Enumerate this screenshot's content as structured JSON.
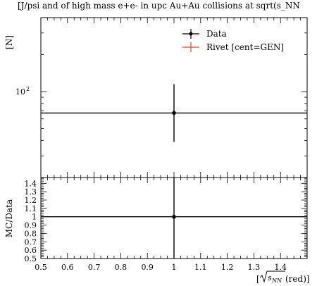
{
  "chart_data": [
    {
      "type": "scatter",
      "title": "[J/psi and of high mass e+e- in upc Au+Au collisions at sqrt(s_NN",
      "ylabel": "[N]",
      "xlabel": "",
      "log_y": true,
      "xlim": [
        0.5,
        1.5
      ],
      "ylim": [
        20,
        400
      ],
      "y_ticks": [
        {
          "value": 100,
          "label": "10",
          "exp": "2"
        }
      ],
      "legend": {
        "placement": "top-right",
        "entries": [
          {
            "label": "Data",
            "color": "#000000"
          },
          {
            "label": "Rivet [cent=GEN]",
            "color": "#e8472b"
          }
        ]
      },
      "series": [
        {
          "name": "Data",
          "x": [
            1.0
          ],
          "y": [
            67
          ],
          "x_range": [
            0.5,
            1.5
          ],
          "y_err": [
            [
              39,
              115
            ]
          ]
        }
      ]
    },
    {
      "type": "scatter",
      "title": "",
      "ylabel": "MC/Data",
      "xlabel": "[√s_NN(red)]",
      "xlim": [
        0.5,
        1.5
      ],
      "ylim": [
        0.5,
        1.47
      ],
      "x_ticks": [
        "0.5",
        "0.6",
        "0.7",
        "0.8",
        "0.9",
        "1",
        "1.1",
        "1.2",
        "1.3",
        "1.4"
      ],
      "x_tick_values": [
        0.5,
        0.6,
        0.7,
        0.8,
        0.9,
        1.0,
        1.1,
        1.2,
        1.3,
        1.4
      ],
      "y_ticks": [
        "0.5",
        "0.6",
        "0.7",
        "0.8",
        "0.9",
        "1",
        "1.1",
        "1.2",
        "1.3",
        "1.4"
      ],
      "y_tick_values": [
        0.5,
        0.6,
        0.7,
        0.8,
        0.9,
        1.0,
        1.1,
        1.2,
        1.3,
        1.4
      ],
      "series": [
        {
          "name": "Data",
          "x": [
            1.0
          ],
          "y": [
            1.0
          ],
          "x_range": [
            0.5,
            1.5
          ],
          "y_err": [
            [
              0.5,
              1.47
            ]
          ]
        }
      ]
    }
  ]
}
